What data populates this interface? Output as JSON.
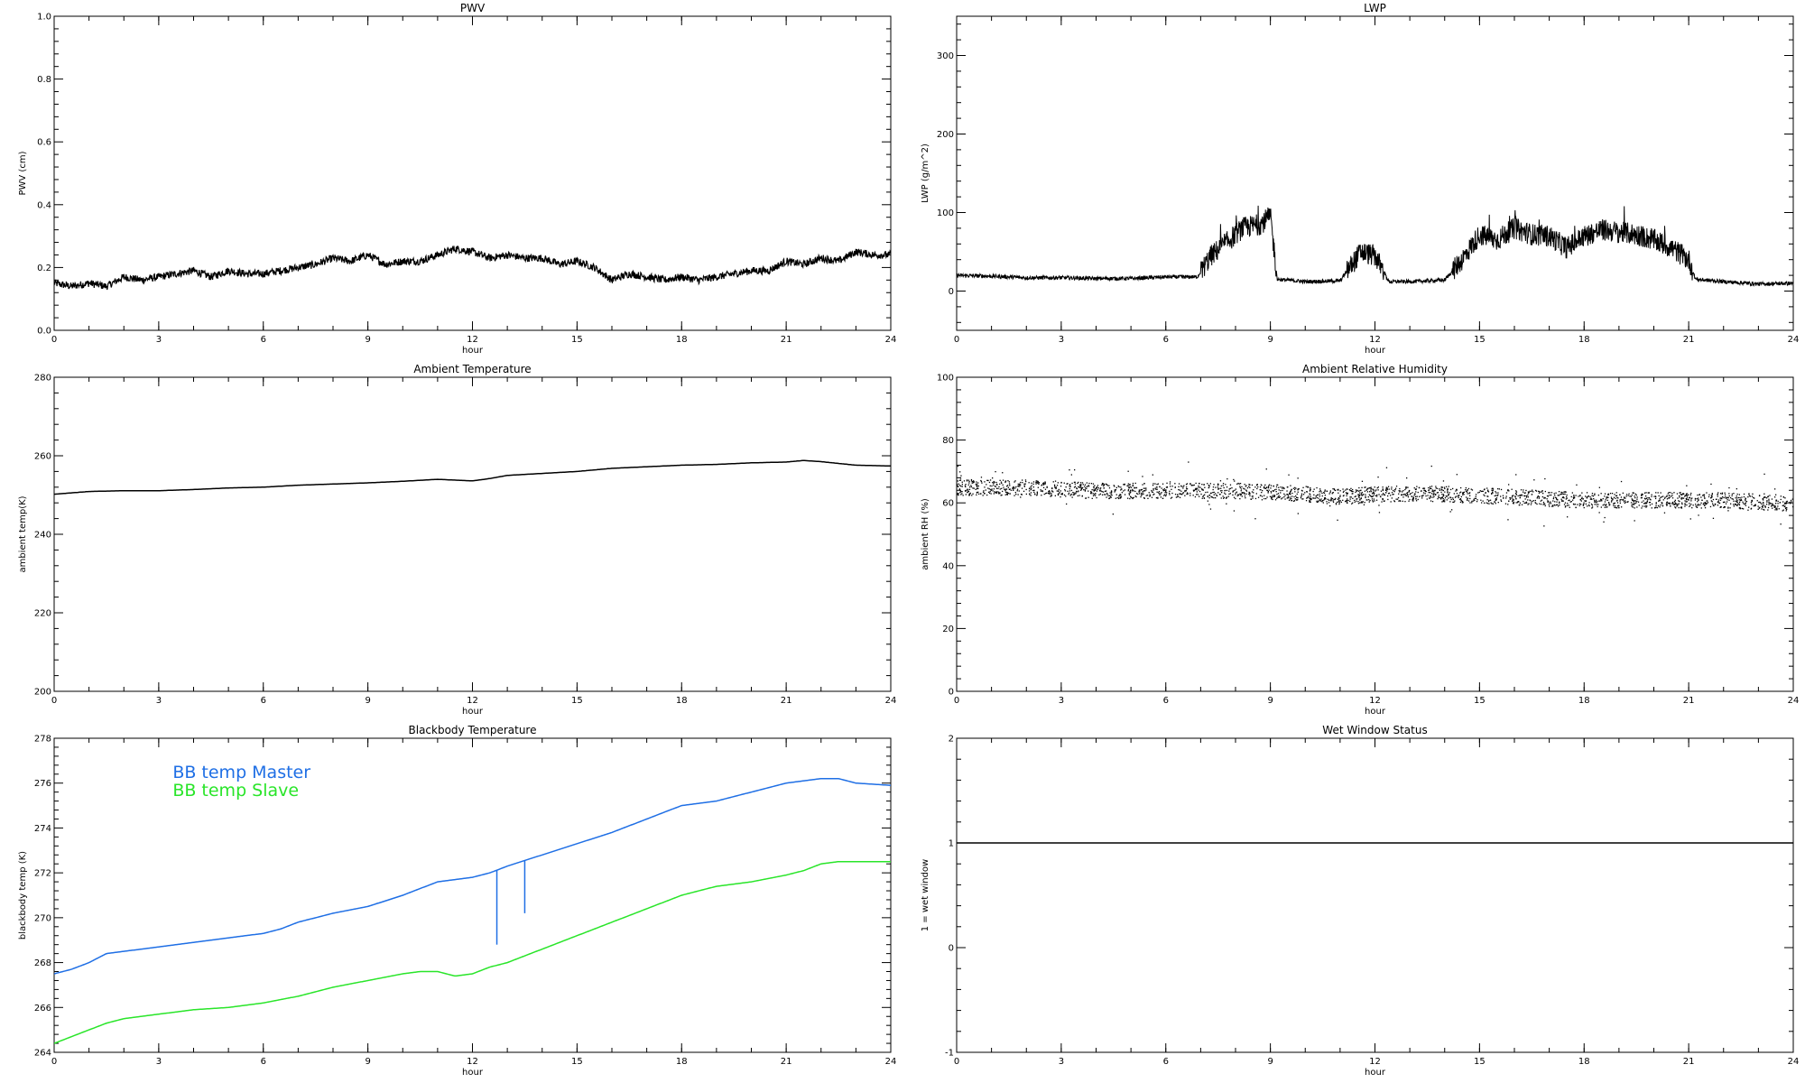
{
  "colors": {
    "axis": "#000000",
    "series_default": "#000000",
    "master": "#1f6fe5",
    "slave": "#29e529"
  },
  "chart_data": [
    {
      "type": "scatter",
      "title": "PWV",
      "xlabel": "hour",
      "ylabel": "PWV (cm)",
      "xlim": [
        0,
        24
      ],
      "ylim": [
        0,
        1.0
      ],
      "xticks": [
        0,
        3,
        6,
        9,
        12,
        15,
        18,
        21,
        24
      ],
      "yticks": [
        0.0,
        0.2,
        0.4,
        0.6,
        0.8,
        1.0
      ],
      "ytick_labels": [
        "0.0",
        "0.2",
        "0.4",
        "0.6",
        "0.8",
        "1.0"
      ],
      "series": [
        {
          "values_x": [
            0,
            0.5,
            1,
            1.5,
            2,
            2.5,
            3,
            3.5,
            4,
            4.5,
            5,
            5.5,
            6,
            6.5,
            7,
            7.5,
            8,
            8.5,
            9,
            9.5,
            10,
            10.5,
            11,
            11.5,
            12,
            12.5,
            13,
            13.5,
            14,
            14.5,
            15,
            15.5,
            16,
            16.5,
            17,
            17.5,
            18,
            18.5,
            19,
            19.5,
            20,
            20.5,
            21,
            21.5,
            22,
            22.5,
            23,
            23.5,
            24
          ],
          "values_y": [
            0.15,
            0.14,
            0.15,
            0.14,
            0.17,
            0.16,
            0.17,
            0.18,
            0.19,
            0.17,
            0.19,
            0.18,
            0.18,
            0.19,
            0.2,
            0.21,
            0.23,
            0.22,
            0.24,
            0.21,
            0.22,
            0.22,
            0.24,
            0.26,
            0.25,
            0.23,
            0.24,
            0.23,
            0.23,
            0.21,
            0.22,
            0.2,
            0.16,
            0.18,
            0.17,
            0.16,
            0.17,
            0.16,
            0.17,
            0.18,
            0.19,
            0.19,
            0.22,
            0.21,
            0.23,
            0.22,
            0.25,
            0.24,
            0.24
          ],
          "style": "noisy"
        }
      ]
    },
    {
      "type": "scatter",
      "title": "LWP",
      "xlabel": "hour",
      "ylabel": "LWP (g/m^2)",
      "xlim": [
        0,
        24
      ],
      "ylim": [
        -50,
        350
      ],
      "xticks": [
        0,
        3,
        6,
        9,
        12,
        15,
        18,
        21,
        24
      ],
      "yticks": [
        0,
        100,
        200,
        300
      ],
      "ytick_labels": [
        "0",
        "100",
        "200",
        "300"
      ],
      "series": [
        {
          "values_x": [
            0,
            1,
            2,
            3,
            4,
            5,
            6,
            6.9,
            7.3,
            7.7,
            8.2,
            8.7,
            9.0,
            9.2,
            10,
            11,
            11.6,
            12.0,
            12.4,
            13,
            14,
            14.5,
            15,
            15.5,
            16,
            16.5,
            17,
            17.5,
            18,
            18.5,
            19,
            19.5,
            20,
            20.5,
            21,
            21.2,
            22,
            23,
            24
          ],
          "values_y": [
            20,
            19,
            17,
            17,
            16,
            16,
            18,
            18,
            45,
            60,
            80,
            85,
            95,
            15,
            12,
            13,
            50,
            45,
            12,
            12,
            14,
            40,
            72,
            65,
            80,
            72,
            70,
            55,
            70,
            78,
            75,
            72,
            65,
            55,
            40,
            15,
            12,
            9,
            10
          ],
          "style": "noisy-cloud"
        }
      ]
    },
    {
      "type": "line",
      "title": "Ambient Temperature",
      "xlabel": "hour",
      "ylabel": "ambient temp(K)",
      "xlim": [
        0,
        24
      ],
      "ylim": [
        200,
        280
      ],
      "xticks": [
        0,
        3,
        6,
        9,
        12,
        15,
        18,
        21,
        24
      ],
      "yticks": [
        200,
        220,
        240,
        260,
        280
      ],
      "ytick_labels": [
        "200",
        "220",
        "240",
        "260",
        "280"
      ],
      "series": [
        {
          "values_x": [
            0,
            1,
            2,
            3,
            4,
            5,
            6,
            7,
            8,
            9,
            10,
            11,
            12,
            12.5,
            13,
            14,
            15,
            16,
            17,
            18,
            19,
            20,
            21,
            21.5,
            22,
            23,
            24
          ],
          "values_y": [
            250.2,
            250.9,
            251.1,
            251.1,
            251.4,
            251.8,
            252.0,
            252.5,
            252.8,
            253.1,
            253.5,
            254.0,
            253.6,
            254.2,
            255.0,
            255.5,
            256.0,
            256.8,
            257.2,
            257.6,
            257.8,
            258.2,
            258.4,
            258.8,
            258.5,
            257.6,
            257.4
          ],
          "style": "line"
        }
      ]
    },
    {
      "type": "scatter",
      "title": "Ambient Relative Humidity",
      "xlabel": "hour",
      "ylabel": "ambient RH (%)",
      "xlim": [
        0,
        24
      ],
      "ylim": [
        0,
        100
      ],
      "xticks": [
        0,
        3,
        6,
        9,
        12,
        15,
        18,
        21,
        24
      ],
      "yticks": [
        0,
        20,
        40,
        60,
        80,
        100
      ],
      "ytick_labels": [
        "0",
        "20",
        "40",
        "60",
        "80",
        "100"
      ],
      "series": [
        {
          "values_x": [
            0,
            2,
            4,
            6,
            8,
            10,
            11,
            12,
            14,
            16,
            18,
            20,
            22,
            24
          ],
          "values_y": [
            65,
            65,
            64,
            64,
            64,
            63,
            62,
            63,
            63,
            62,
            61,
            61,
            61,
            60
          ],
          "style": "dots"
        }
      ]
    },
    {
      "type": "line",
      "title": "Blackbody Temperature",
      "xlabel": "hour",
      "ylabel": "blackbody temp (K)",
      "xlim": [
        0,
        24
      ],
      "ylim": [
        264,
        278
      ],
      "xticks": [
        0,
        3,
        6,
        9,
        12,
        15,
        18,
        21,
        24
      ],
      "yticks": [
        264,
        266,
        268,
        270,
        272,
        274,
        276,
        278
      ],
      "ytick_labels": [
        "264",
        "266",
        "268",
        "270",
        "272",
        "274",
        "276",
        "278"
      ],
      "legend": "top-left",
      "series": [
        {
          "name": "BB temp Master",
          "color": "#1f6fe5",
          "values_x": [
            0,
            0.5,
            1,
            1.5,
            2,
            3,
            4,
            5,
            6,
            6.5,
            7,
            8,
            9,
            10,
            11,
            11.5,
            12,
            12.5,
            13,
            14,
            15,
            16,
            17,
            18,
            19,
            20,
            21,
            22,
            22.5,
            23,
            24
          ],
          "values_y": [
            267.5,
            267.7,
            268.0,
            268.4,
            268.5,
            268.7,
            268.9,
            269.1,
            269.3,
            269.5,
            269.8,
            270.2,
            270.5,
            271.0,
            271.6,
            271.7,
            271.8,
            272.0,
            272.3,
            272.8,
            273.3,
            273.8,
            274.4,
            275.0,
            275.2,
            275.6,
            276.0,
            276.2,
            276.2,
            276.0,
            275.9
          ],
          "spikes": [
            {
              "x": 12.7,
              "y_low": 268.8
            },
            {
              "x": 13.5,
              "y_low": 270.2
            }
          ],
          "style": "line"
        },
        {
          "name": "BB temp Slave",
          "color": "#29e529",
          "values_x": [
            0,
            0.5,
            1,
            1.5,
            2,
            3,
            4,
            5,
            6,
            7,
            8,
            9,
            10,
            10.5,
            11,
            11.5,
            12,
            12.5,
            13,
            14,
            15,
            16,
            17,
            18,
            19,
            20,
            21,
            21.5,
            22,
            22.5,
            23,
            24
          ],
          "values_y": [
            264.4,
            264.7,
            265.0,
            265.3,
            265.5,
            265.7,
            265.9,
            266.0,
            266.2,
            266.5,
            266.9,
            267.2,
            267.5,
            267.6,
            267.6,
            267.4,
            267.5,
            267.8,
            268.0,
            268.6,
            269.2,
            269.8,
            270.4,
            271.0,
            271.4,
            271.6,
            271.9,
            272.1,
            272.4,
            272.5,
            272.5,
            272.5
          ],
          "style": "line"
        }
      ]
    },
    {
      "type": "line",
      "title": "Wet Window Status",
      "xlabel": "hour",
      "ylabel": "1 = wet window",
      "xlim": [
        0,
        24
      ],
      "ylim": [
        -1,
        2
      ],
      "xticks": [
        0,
        3,
        6,
        9,
        12,
        15,
        18,
        21,
        24
      ],
      "yticks": [
        -1,
        0,
        1,
        2
      ],
      "ytick_labels": [
        "-1",
        "0",
        "1",
        "2"
      ],
      "series": [
        {
          "values_x": [
            0,
            24
          ],
          "values_y": [
            1,
            1
          ],
          "style": "line"
        }
      ]
    }
  ]
}
